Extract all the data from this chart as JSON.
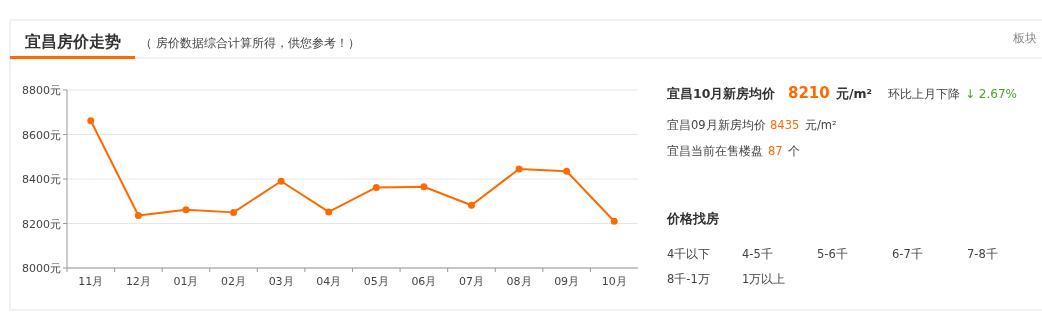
{
  "chart_data": [
    {
      "type": "line",
      "title": "宜昌房价走势",
      "subtitle": "（ 房价数据综合计算所得，供您参考！）",
      "annotations": [
        "板块"
      ],
      "categories": [
        "11月",
        "12月",
        "01月",
        "02月",
        "03月",
        "04月",
        "05月",
        "06月",
        "07月",
        "08月",
        "09月",
        "10月"
      ],
      "series": [
        {
          "color": "#ff6a00",
          "values": [
            8662,
            8236,
            8262,
            8250,
            8390,
            8252,
            8362,
            8365,
            8282,
            8445,
            8435,
            8210
          ]
        }
      ],
      "ylim": [
        8000,
        8800
      ],
      "yticks": [
        {
          "value": 8000,
          "label": "8000元"
        },
        {
          "value": 8200,
          "label": "8200元"
        },
        {
          "value": 8400,
          "label": "8400元"
        },
        {
          "value": 8600,
          "label": "8600元"
        },
        {
          "value": 8800,
          "label": "8800元"
        }
      ],
      "grid": "y",
      "marker": "circle"
    },
    {
      "type": "other",
      "annotations": [
        "宜昌10月新房均价",
        "8210",
        "元/m²",
        "环比上月下降",
        "↓ 2.67%",
        "宜昌09月新房均价",
        "8435",
        "元/m²",
        "宜昌当前在售楼盘",
        "87",
        "个"
      ]
    },
    {
      "type": "other",
      "title": "价格找房",
      "annotations": [
        "4千以下",
        "4-5千",
        "5-6千",
        "6-7千",
        "7-8千",
        "8千-1万",
        "1万以上"
      ]
    }
  ]
}
